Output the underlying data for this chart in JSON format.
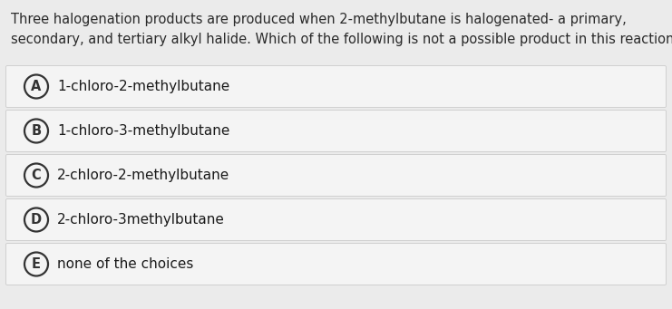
{
  "background_color": "#ebebeb",
  "question_text_line1": "Three halogenation products are produced when 2-methylbutane is halogenated- a primary,",
  "question_text_line2": "secondary, and tertiary alkyl halide. Which of the following is not a possible product in this reaction?",
  "options": [
    {
      "letter": "A",
      "text": "1-chloro-2-methylbutane"
    },
    {
      "letter": "B",
      "text": "1-chloro-3-methylbutane"
    },
    {
      "letter": "C",
      "text": "2-chloro-2-methylbutane"
    },
    {
      "letter": "D",
      "text": "2-chloro-3methylbutane"
    },
    {
      "letter": "E",
      "text": "none of the choices"
    }
  ],
  "option_bg_color": "#f4f4f4",
  "option_border_color": "#d0d0d0",
  "circle_edge_color": "#333333",
  "text_color": "#1a1a1a",
  "question_text_color": "#2a2a2a",
  "font_size_question": 10.5,
  "font_size_option": 11.0,
  "font_size_letter": 10.5,
  "fig_width": 7.41,
  "fig_height": 3.41,
  "dpi": 100
}
